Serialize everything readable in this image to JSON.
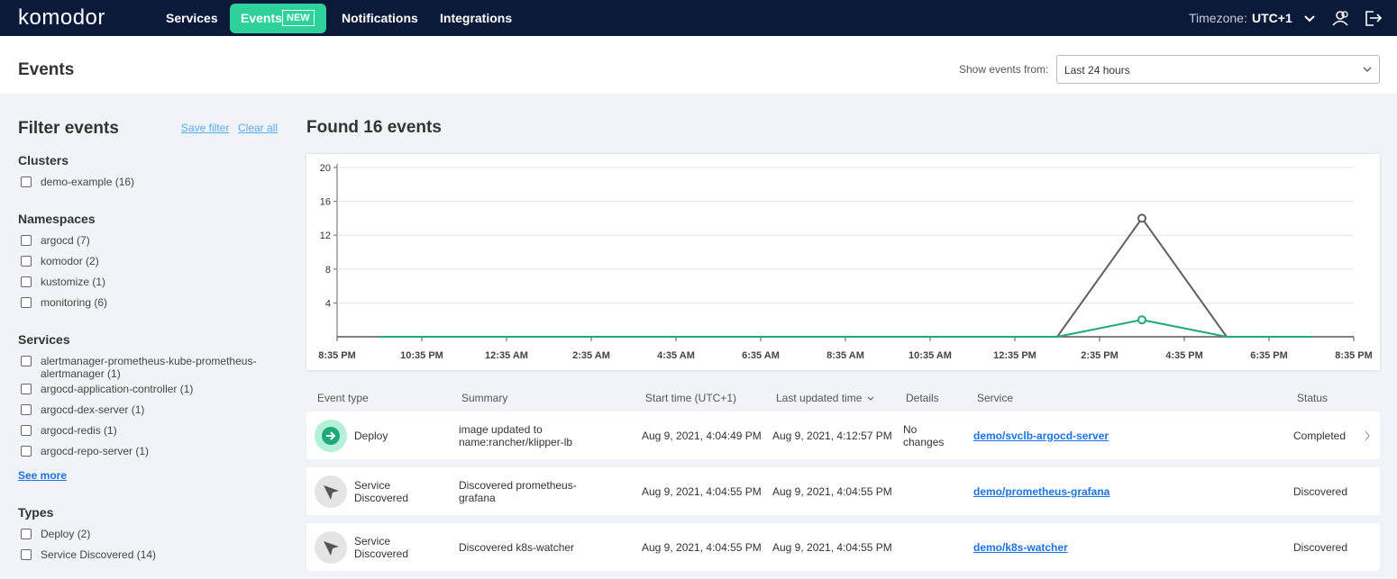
{
  "nav": {
    "logo": "komodor",
    "items": [
      "Services",
      "Events",
      "Notifications",
      "Integrations"
    ],
    "badge": "NEW",
    "timezone_label": "Timezone:",
    "timezone_value": "UTC+1"
  },
  "header": {
    "title": "Events",
    "range_label": "Show events from:",
    "range_value": "Last 24 hours"
  },
  "filters": {
    "title": "Filter events",
    "save": "Save filter",
    "clear": "Clear all",
    "groups": [
      {
        "title": "Clusters",
        "options": [
          "demo-example (16)"
        ]
      },
      {
        "title": "Namespaces",
        "options": [
          "argocd (7)",
          "komodor (2)",
          "kustomize (1)",
          "monitoring (6)"
        ]
      },
      {
        "title": "Services",
        "options": [
          "alertmanager-prometheus-kube-prometheus-alertmanager (1)",
          "argocd-application-controller (1)",
          "argocd-dex-server (1)",
          "argocd-redis (1)",
          "argocd-repo-server (1)"
        ],
        "more": "See more"
      },
      {
        "title": "Types",
        "options": [
          "Deploy (2)",
          "Service Discovered (14)"
        ]
      }
    ]
  },
  "results": {
    "title": "Found 16 events"
  },
  "chart_data": {
    "type": "line",
    "x": [
      1,
      3,
      5,
      7,
      9,
      11,
      13,
      15,
      17,
      19,
      21,
      23
    ],
    "xlim": [
      0,
      24
    ],
    "xticks": [
      {
        "value": 0,
        "label": "8:35 PM"
      },
      {
        "value": 2,
        "label": "10:35 PM"
      },
      {
        "value": 4,
        "label": "12:35 AM"
      },
      {
        "value": 6,
        "label": "2:35 AM"
      },
      {
        "value": 8,
        "label": "4:35 AM"
      },
      {
        "value": 10,
        "label": "6:35 AM"
      },
      {
        "value": 12,
        "label": "8:35 AM"
      },
      {
        "value": 14,
        "label": "10:35 AM"
      },
      {
        "value": 16,
        "label": "12:35 PM"
      },
      {
        "value": 18,
        "label": "2:35 PM"
      },
      {
        "value": 20,
        "label": "4:35 PM"
      },
      {
        "value": 22,
        "label": "6:35 PM"
      },
      {
        "value": 24,
        "label": "8:35 PM"
      }
    ],
    "ylim": [
      0,
      20
    ],
    "yticks": [
      4,
      8,
      12,
      16,
      20
    ],
    "grid": true,
    "series": [
      {
        "color": "#5f6062",
        "values": [
          0,
          0,
          0,
          0,
          0,
          0,
          0,
          0,
          0,
          14,
          0,
          0
        ]
      },
      {
        "color": "#1fa97a",
        "values": [
          0,
          0,
          0,
          0,
          0,
          0,
          0,
          0,
          0,
          2,
          0,
          0
        ]
      }
    ]
  },
  "table": {
    "columns": [
      "Event type",
      "Summary",
      "Start time (UTC+1)",
      "Last updated time",
      "Details",
      "Service",
      "Status"
    ],
    "rows": [
      {
        "type": "Deploy",
        "summary": "image updated to name:rancher/klipper-lb",
        "start": "Aug 9, 2021, 4:04:49 PM",
        "updated": "Aug 9, 2021, 4:12:57 PM",
        "details": "No changes",
        "service": "demo/svclb-argocd-server",
        "status": "Completed"
      },
      {
        "type": "Service Discovered",
        "summary": "Discovered prometheus-grafana",
        "start": "Aug 9, 2021, 4:04:55 PM",
        "updated": "Aug 9, 2021, 4:04:55 PM",
        "service": "demo/prometheus-grafana",
        "status": "Discovered"
      },
      {
        "type": "Service Discovered",
        "summary": "Discovered k8s-watcher",
        "start": "Aug 9, 2021, 4:04:55 PM",
        "updated": "Aug 9, 2021, 4:04:55 PM",
        "service": "demo/k8s-watcher",
        "status": "Discovered"
      }
    ]
  }
}
